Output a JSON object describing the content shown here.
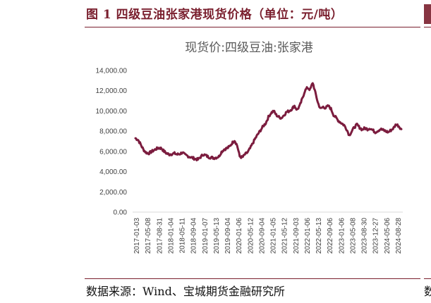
{
  "figure": {
    "title": "图 1 四级豆油张家港现货价格（单位：元/吨）",
    "source": "数据来源：Wind、宝城期货金融研究所",
    "accent_color": "#7a1f2e"
  },
  "chart_data": {
    "type": "line",
    "title": "现货价:四级豆油:张家港",
    "xlabel": "",
    "ylabel": "",
    "ylim": [
      0,
      14000
    ],
    "yticks": [
      "0.00",
      "2,000.00",
      "4,000.00",
      "6,000.00",
      "8,000.00",
      "10,000.00",
      "12,000.00",
      "14,000.00"
    ],
    "xticks": [
      "2017-01-03",
      "2017-05-08",
      "2017-08-31",
      "2018-01-04",
      "2018-05-11",
      "2018-09-04",
      "2019-01-07",
      "2019-05-13",
      "2019-09-04",
      "2020-01-06",
      "2020-05-12",
      "2020-09-04",
      "2021-01-05",
      "2021-05-12",
      "2021-09-03",
      "2022-01-06",
      "2022-05-13",
      "2022-09-06",
      "2023-01-06",
      "2023-05-08",
      "2023-08-30",
      "2023-12-27",
      "2024-05-06",
      "2024-08-28"
    ],
    "grid": false,
    "legend": "none",
    "line_color": "#7b1c3e",
    "series": [
      {
        "values": [
          7300,
          7150,
          6700,
          6200,
          5900,
          5800,
          5950,
          6100,
          6250,
          6350,
          6300,
          6000,
          5800,
          5700,
          5750,
          5800,
          5700,
          5750,
          5900,
          5650,
          5550,
          5450,
          5350,
          5250,
          5200,
          5450,
          5700,
          5600,
          5450,
          5400,
          5350,
          5400,
          5500,
          5950,
          6200,
          6300,
          6450,
          6800,
          7100,
          6600,
          5500,
          5400,
          5700,
          5900,
          6300,
          6800,
          7300,
          7700,
          8100,
          8500,
          8800,
          9400,
          9800,
          10000,
          9600,
          9400,
          9300,
          9600,
          9900,
          10000,
          10200,
          10500,
          10100,
          10500,
          11200,
          12000,
          12300,
          12100,
          12800,
          11800,
          10800,
          10200,
          10400,
          10300,
          10500,
          10200,
          9600,
          9300,
          9000,
          8800,
          8600,
          8200,
          7600,
          8000,
          8400,
          8650,
          8350,
          8150,
          8300,
          8200,
          8300,
          8100,
          7900,
          8050,
          8200,
          8100,
          8000,
          7900,
          8100,
          8300,
          8700,
          8500,
          8200
        ]
      }
    ]
  }
}
